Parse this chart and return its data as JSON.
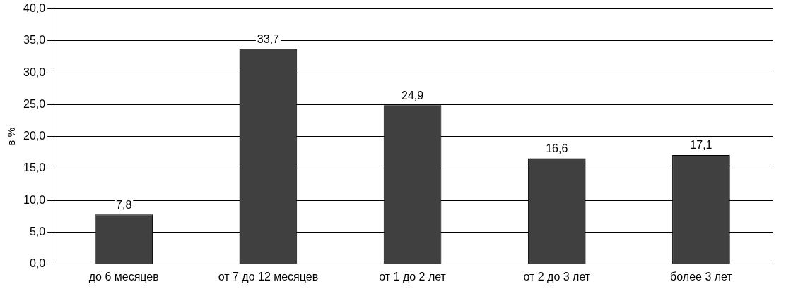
{
  "chart_data": {
    "type": "bar",
    "ylabel": "в %",
    "categories": [
      "до 6 месяцев",
      "от 7 до 12 месяцев",
      "от 1 до 2 лет",
      "от 2 до 3 лет",
      "более 3 лет"
    ],
    "values": [
      7.8,
      33.7,
      24.9,
      16.6,
      17.1
    ],
    "value_labels": [
      "7,8",
      "33,7",
      "24,9",
      "16,6",
      "17,1"
    ],
    "color": "#404040",
    "ylim": [
      0,
      40
    ],
    "yticks": [
      {
        "value": 0,
        "label": "0,0"
      },
      {
        "value": 5,
        "label": "5,0"
      },
      {
        "value": 10,
        "label": "10,0"
      },
      {
        "value": 15,
        "label": "15,0"
      },
      {
        "value": 20,
        "label": "20,0"
      },
      {
        "value": 25,
        "label": "25,0"
      },
      {
        "value": 30,
        "label": "30,0"
      },
      {
        "value": 35,
        "label": "35,0"
      },
      {
        "value": 40,
        "label": "40,0"
      }
    ],
    "grid": "y",
    "legend": false
  }
}
